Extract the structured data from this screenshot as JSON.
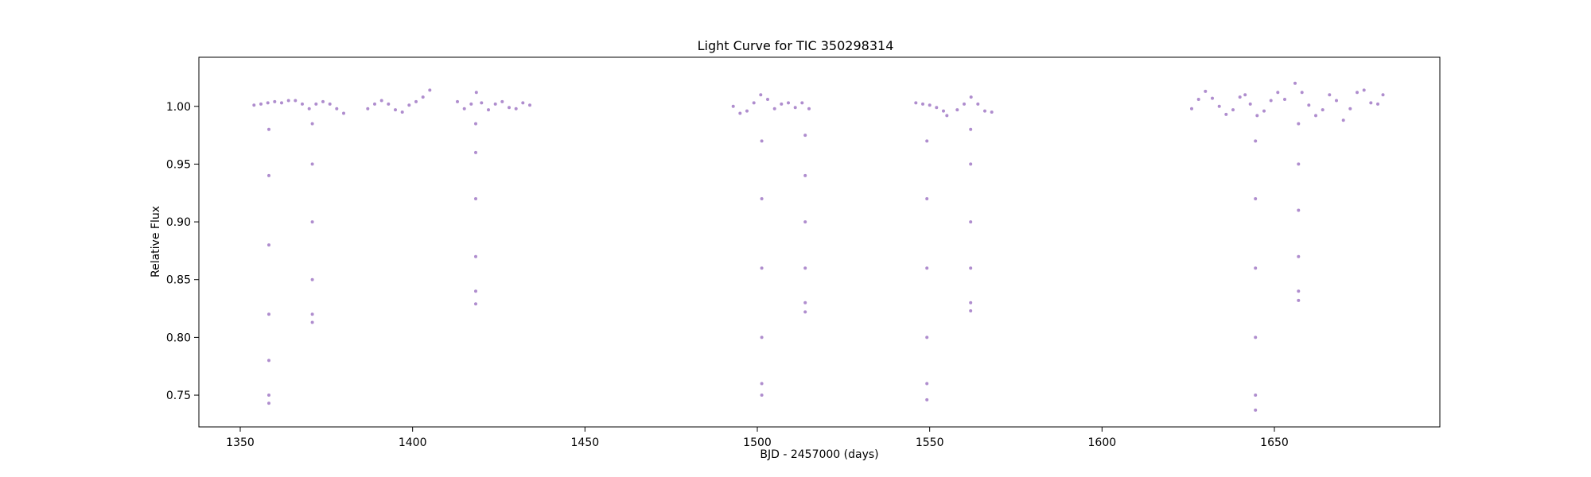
{
  "chart_data": {
    "type": "scatter",
    "title": "Light Curve for TIC 350298314",
    "xlabel": "BJD - 2457000 (days)",
    "ylabel": "Relative Flux",
    "xlim": [
      1338,
      1698
    ],
    "ylim": [
      0.7225,
      1.0425
    ],
    "xticks": [
      1350,
      1400,
      1450,
      1500,
      1550,
      1600,
      1650
    ],
    "xtick_labels": [
      "1350",
      "1400",
      "1450",
      "1500",
      "1550",
      "1600",
      "1650"
    ],
    "yticks": [
      0.75,
      0.8,
      0.85,
      0.9,
      0.95,
      1.0
    ],
    "ytick_labels": [
      "0.75",
      "0.80",
      "0.85",
      "0.90",
      "0.95",
      "1.00"
    ],
    "grid": false,
    "legend": "none",
    "marker_color": "#9467bd",
    "series": [
      {
        "points": [
          [
            1354.0,
            1.001
          ],
          [
            1356.0,
            1.002
          ],
          [
            1358.0,
            1.003
          ],
          [
            1360.0,
            1.004
          ],
          [
            1362.0,
            1.003
          ],
          [
            1364.0,
            1.005
          ],
          [
            1366.0,
            1.005
          ],
          [
            1368.0,
            1.002
          ],
          [
            1358.3,
            0.743
          ],
          [
            1358.3,
            0.75
          ],
          [
            1358.3,
            0.78
          ],
          [
            1358.3,
            0.82
          ],
          [
            1358.3,
            0.88
          ],
          [
            1358.3,
            0.94
          ],
          [
            1358.3,
            0.98
          ],
          [
            1370.0,
            0.998
          ],
          [
            1372.0,
            1.002
          ],
          [
            1374.0,
            1.004
          ],
          [
            1376.0,
            1.002
          ],
          [
            1378.0,
            0.998
          ],
          [
            1380.0,
            0.994
          ],
          [
            1370.9,
            0.813
          ],
          [
            1370.9,
            0.82
          ],
          [
            1370.9,
            0.85
          ],
          [
            1370.9,
            0.9
          ],
          [
            1370.9,
            0.95
          ],
          [
            1370.9,
            0.985
          ],
          [
            1387.0,
            0.998
          ],
          [
            1389.0,
            1.002
          ],
          [
            1391.0,
            1.005
          ],
          [
            1393.0,
            1.002
          ],
          [
            1395.0,
            0.997
          ],
          [
            1397.0,
            0.995
          ],
          [
            1399.0,
            1.001
          ],
          [
            1401.0,
            1.004
          ],
          [
            1403.0,
            1.008
          ],
          [
            1405.0,
            1.014
          ],
          [
            1413.0,
            1.004
          ],
          [
            1415.0,
            0.998
          ],
          [
            1417.0,
            1.002
          ],
          [
            1418.5,
            1.012
          ],
          [
            1420.0,
            1.003
          ],
          [
            1418.3,
            0.829
          ],
          [
            1418.3,
            0.84
          ],
          [
            1418.3,
            0.87
          ],
          [
            1418.3,
            0.92
          ],
          [
            1418.3,
            0.96
          ],
          [
            1418.3,
            0.985
          ],
          [
            1422.0,
            0.997
          ],
          [
            1424.0,
            1.002
          ],
          [
            1426.0,
            1.004
          ],
          [
            1428.0,
            0.999
          ],
          [
            1430.0,
            0.998
          ],
          [
            1432.0,
            1.003
          ],
          [
            1434.0,
            1.001
          ],
          [
            1493.0,
            1.0
          ],
          [
            1495.0,
            0.994
          ],
          [
            1497.0,
            0.996
          ],
          [
            1499.0,
            1.003
          ],
          [
            1501.0,
            1.01
          ],
          [
            1503.0,
            1.006
          ],
          [
            1501.3,
            0.75
          ],
          [
            1501.3,
            0.76
          ],
          [
            1501.3,
            0.8
          ],
          [
            1501.3,
            0.86
          ],
          [
            1501.3,
            0.92
          ],
          [
            1501.3,
            0.97
          ],
          [
            1505.0,
            0.998
          ],
          [
            1507.0,
            1.002
          ],
          [
            1509.0,
            1.003
          ],
          [
            1511.0,
            0.999
          ],
          [
            1513.0,
            1.003
          ],
          [
            1515.0,
            0.998
          ],
          [
            1513.9,
            0.822
          ],
          [
            1513.9,
            0.83
          ],
          [
            1513.9,
            0.86
          ],
          [
            1513.9,
            0.9
          ],
          [
            1513.9,
            0.94
          ],
          [
            1513.9,
            0.975
          ],
          [
            1546.0,
            1.003
          ],
          [
            1548.0,
            1.002
          ],
          [
            1550.0,
            1.001
          ],
          [
            1552.0,
            0.999
          ],
          [
            1554.0,
            0.996
          ],
          [
            1555.0,
            0.992
          ],
          [
            1549.2,
            0.746
          ],
          [
            1549.2,
            0.76
          ],
          [
            1549.2,
            0.8
          ],
          [
            1549.2,
            0.86
          ],
          [
            1549.2,
            0.92
          ],
          [
            1549.2,
            0.97
          ],
          [
            1558.0,
            0.997
          ],
          [
            1560.0,
            1.002
          ],
          [
            1562.0,
            1.008
          ],
          [
            1564.0,
            1.002
          ],
          [
            1566.0,
            0.996
          ],
          [
            1568.0,
            0.995
          ],
          [
            1561.9,
            0.823
          ],
          [
            1561.9,
            0.83
          ],
          [
            1561.9,
            0.86
          ],
          [
            1561.9,
            0.9
          ],
          [
            1561.9,
            0.95
          ],
          [
            1561.9,
            0.98
          ],
          [
            1626.0,
            0.998
          ],
          [
            1628.0,
            1.006
          ],
          [
            1630.0,
            1.013
          ],
          [
            1632.0,
            1.007
          ],
          [
            1634.0,
            1.0
          ],
          [
            1636.0,
            0.993
          ],
          [
            1638.0,
            0.997
          ],
          [
            1640.0,
            1.008
          ],
          [
            1641.5,
            1.01
          ],
          [
            1643.0,
            1.002
          ],
          [
            1645.0,
            0.992
          ],
          [
            1647.0,
            0.996
          ],
          [
            1649.0,
            1.005
          ],
          [
            1651.0,
            1.012
          ],
          [
            1653.0,
            1.006
          ],
          [
            1644.5,
            0.737
          ],
          [
            1644.5,
            0.75
          ],
          [
            1644.5,
            0.8
          ],
          [
            1644.5,
            0.86
          ],
          [
            1644.5,
            0.92
          ],
          [
            1644.5,
            0.97
          ],
          [
            1656.0,
            1.02
          ],
          [
            1658.0,
            1.012
          ],
          [
            1660.0,
            1.001
          ],
          [
            1662.0,
            0.992
          ],
          [
            1664.0,
            0.997
          ],
          [
            1666.0,
            1.01
          ],
          [
            1668.0,
            1.005
          ],
          [
            1670.0,
            0.988
          ],
          [
            1672.0,
            0.998
          ],
          [
            1674.0,
            1.012
          ],
          [
            1676.0,
            1.014
          ],
          [
            1678.0,
            1.003
          ],
          [
            1680.0,
            1.002
          ],
          [
            1681.5,
            1.01
          ],
          [
            1657.0,
            0.832
          ],
          [
            1657.0,
            0.84
          ],
          [
            1657.0,
            0.87
          ],
          [
            1657.0,
            0.91
          ],
          [
            1657.0,
            0.95
          ],
          [
            1657.0,
            0.985
          ]
        ]
      }
    ]
  }
}
